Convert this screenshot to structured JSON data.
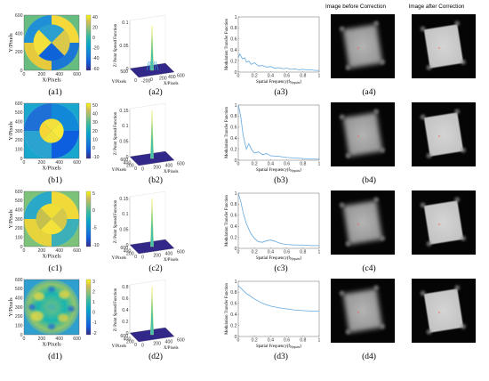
{
  "headers": {
    "before": "Image before Correction",
    "after": "Image after Correction"
  },
  "axis_text": {
    "x_pixels": "X/Pixels",
    "y_pixels": "Y/Pixels",
    "psf": "Z/ Point Spread Function",
    "mtf": "Modulation Transfer Function",
    "spatial_freq": "Spatial Frequency(f",
    "nyquist": "Nyquist",
    "spatial_freq_close": ")"
  },
  "rows": [
    {
      "id": "a",
      "captions": [
        "(a1)",
        "(a2)",
        "(a3)",
        "(a4)"
      ],
      "map_ticks_x": [
        "0",
        "200",
        "400",
        "600"
      ],
      "map_ticks_y": [
        "0",
        "200",
        "400",
        "600"
      ],
      "colorbar_ticks": [
        "40",
        "20",
        "0",
        "-20",
        "-40",
        "-60"
      ],
      "psf_ticks_z": [
        "0.1",
        "0.05",
        "0"
      ],
      "psf_ticks_y": [
        "500",
        "0"
      ],
      "psf_ticks_x": [
        "-200",
        "0",
        "200",
        "400",
        "600"
      ],
      "mtf_ticks_y": [
        "1",
        "0.8",
        "0.6",
        "0.4",
        "0.2",
        "0"
      ],
      "mtf_ticks_x": [
        "0",
        "0.2",
        "0.4",
        "0.6",
        "0.8",
        "1"
      ]
    },
    {
      "id": "b",
      "captions": [
        "(b1)",
        "(b2)",
        "(b3)",
        "(b4)"
      ],
      "map_ticks_x": [
        "0",
        "200",
        "400",
        "600"
      ],
      "map_ticks_y": [
        "0",
        "100",
        "200",
        "300",
        "400",
        "500",
        "600"
      ],
      "colorbar_ticks": [
        "50",
        "40",
        "30",
        "20",
        "10",
        "0",
        "-10"
      ],
      "psf_ticks_z": [
        "0.15",
        "0.1",
        "0.05",
        "0"
      ],
      "psf_ticks_y": [
        "600",
        "400",
        "200",
        "0"
      ],
      "psf_ticks_x": [
        "0",
        "200",
        "400",
        "600"
      ],
      "mtf_ticks_y": [
        "1",
        "0.8",
        "0.6",
        "0.4",
        "0.2",
        "0"
      ],
      "mtf_ticks_x": [
        "0",
        "0.2",
        "0.4",
        "0.6",
        "0.8",
        "1"
      ]
    },
    {
      "id": "c",
      "captions": [
        "(c1)",
        "(c2)",
        "(c3)",
        "(c4)"
      ],
      "map_ticks_x": [
        "0",
        "200",
        "400",
        "600"
      ],
      "map_ticks_y": [
        "0",
        "100",
        "200",
        "300",
        "400",
        "500",
        "600"
      ],
      "colorbar_ticks": [
        "5",
        "0",
        "-5",
        "-10"
      ],
      "psf_ticks_z": [
        "0.15",
        "0.1",
        "0.05",
        "0"
      ],
      "psf_ticks_y": [
        "600",
        "400",
        "200",
        "0"
      ],
      "psf_ticks_x": [
        "0",
        "200",
        "400",
        "600"
      ],
      "mtf_ticks_y": [
        "1",
        "0.8",
        "0.6",
        "0.4",
        "0.2",
        "0"
      ],
      "mtf_ticks_x": [
        "0",
        "0.2",
        "0.4",
        "0.6",
        "0.8",
        "1"
      ]
    },
    {
      "id": "d",
      "captions": [
        "(d1)",
        "(d2)",
        "(d3)",
        "(d4)"
      ],
      "map_ticks_x": [
        "0",
        "200",
        "400",
        "600"
      ],
      "map_ticks_y": [
        "0",
        "100",
        "200",
        "300",
        "400",
        "500",
        "600"
      ],
      "colorbar_ticks": [
        "3",
        "2",
        "1",
        "0",
        "-1",
        "-2"
      ],
      "psf_ticks_z": [
        "0.8",
        "0.6",
        "0.4",
        "0.2",
        "0"
      ],
      "psf_ticks_y": [
        "600",
        "400",
        "200",
        "0"
      ],
      "psf_ticks_x": [
        "0",
        "200",
        "400",
        "600"
      ],
      "mtf_ticks_y": [
        "1",
        "0.8",
        "0.6",
        "0.4",
        "0.2",
        "0"
      ],
      "mtf_ticks_x": [
        "0",
        "0.2",
        "0.4",
        "0.6",
        "0.8",
        "1"
      ]
    }
  ],
  "chart_data": [
    {
      "type": "line",
      "panel": "(a3)",
      "xlim": [
        0,
        1
      ],
      "ylim": [
        0,
        1
      ],
      "x": [
        0,
        0.02,
        0.05,
        0.08,
        0.1,
        0.13,
        0.16,
        0.2,
        0.25,
        0.3,
        0.35,
        0.4,
        0.45,
        0.5,
        0.55,
        0.6,
        0.65,
        0.7,
        0.75,
        0.8,
        0.85,
        0.9,
        0.95,
        1.0
      ],
      "y": [
        0.26,
        0.33,
        0.24,
        0.26,
        0.18,
        0.2,
        0.14,
        0.17,
        0.11,
        0.12,
        0.09,
        0.1,
        0.07,
        0.08,
        0.06,
        0.07,
        0.05,
        0.06,
        0.04,
        0.05,
        0.04,
        0.04,
        0.03,
        0.03
      ]
    },
    {
      "type": "line",
      "panel": "(b3)",
      "xlim": [
        0,
        1
      ],
      "ylim": [
        0,
        1
      ],
      "x": [
        0,
        0.03,
        0.06,
        0.1,
        0.13,
        0.17,
        0.2,
        0.25,
        0.3,
        0.35,
        0.4,
        0.5,
        0.6,
        0.7,
        0.8,
        0.9,
        1.0
      ],
      "y": [
        1.0,
        0.8,
        0.45,
        0.2,
        0.3,
        0.18,
        0.13,
        0.15,
        0.1,
        0.12,
        0.08,
        0.07,
        0.05,
        0.04,
        0.03,
        0.02,
        0.02
      ]
    },
    {
      "type": "line",
      "panel": "(c3)",
      "xlim": [
        0,
        1
      ],
      "ylim": [
        0,
        1
      ],
      "x": [
        0,
        0.03,
        0.06,
        0.1,
        0.15,
        0.2,
        0.25,
        0.3,
        0.35,
        0.4,
        0.45,
        0.5,
        0.55,
        0.6,
        0.7,
        0.8,
        0.9,
        1.0
      ],
      "y": [
        1.0,
        0.85,
        0.65,
        0.45,
        0.28,
        0.18,
        0.12,
        0.11,
        0.14,
        0.15,
        0.13,
        0.1,
        0.08,
        0.07,
        0.06,
        0.06,
        0.05,
        0.05
      ]
    },
    {
      "type": "line",
      "panel": "(d3)",
      "xlim": [
        0,
        1
      ],
      "ylim": [
        0,
        1
      ],
      "x": [
        0,
        0.05,
        0.1,
        0.2,
        0.3,
        0.4,
        0.5,
        0.6,
        0.7,
        0.8,
        0.9,
        1.0
      ],
      "y": [
        0.92,
        0.85,
        0.78,
        0.68,
        0.6,
        0.55,
        0.52,
        0.5,
        0.48,
        0.47,
        0.46,
        0.46
      ]
    }
  ]
}
